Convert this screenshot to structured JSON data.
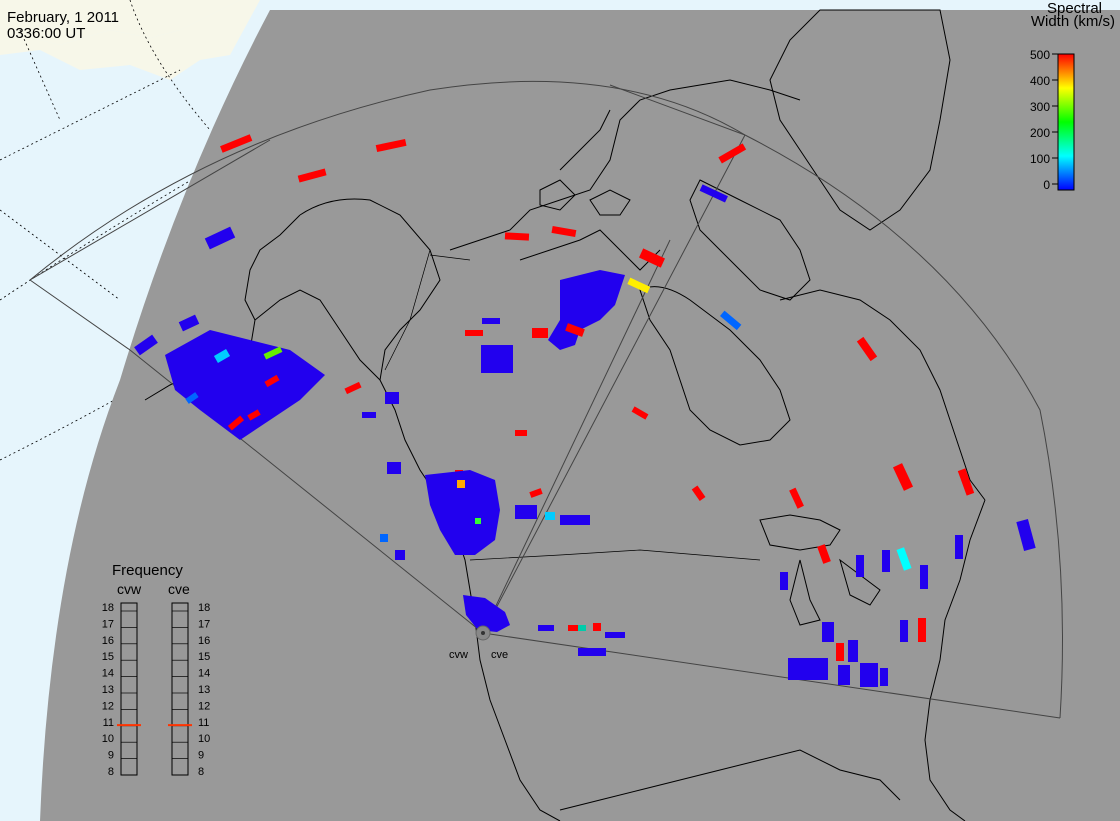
{
  "header": {
    "date": "February, 1 2011",
    "time": "0336:00 UT"
  },
  "colorbar": {
    "title_line1": "Spectral",
    "title_line2": "Width (km/s)",
    "ticks": [
      "500",
      "400",
      "300",
      "200",
      "100",
      "0"
    ],
    "range": [
      0,
      500
    ],
    "colors": [
      "#ff0000",
      "#ffff00",
      "#00ff00",
      "#00ffff",
      "#0000ff"
    ]
  },
  "frequency_panel": {
    "title": "Frequency",
    "labels": [
      "cvw",
      "cve"
    ],
    "scale": [
      "18",
      "17",
      "16",
      "15",
      "14",
      "13",
      "12",
      "11",
      "10",
      "9",
      "8"
    ],
    "range": [
      8,
      18
    ],
    "cvw_value": 10.8,
    "cve_value": 10.8,
    "marker_color": "#ff3300"
  },
  "radars": {
    "cvw_label": "cvw",
    "cve_label": "cve"
  },
  "colors": {
    "night": "#999999",
    "ocean_day": "#e6f5fc",
    "land_day": "#f7f7e9",
    "coast": "#000000",
    "fov": "#444444"
  }
}
